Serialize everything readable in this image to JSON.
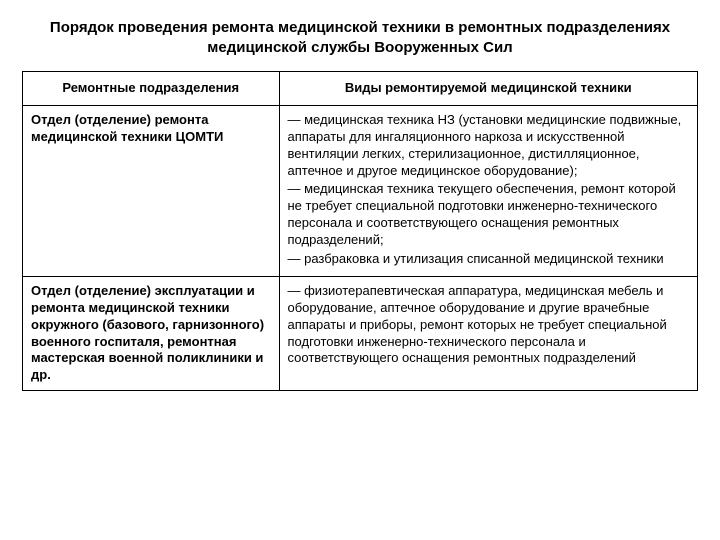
{
  "title": "Порядок проведения ремонта медицинской техники в ремонтных подразделениях медицинской службы Вооруженных Сил",
  "table": {
    "headers": {
      "col1": "Ремонтные подразделения",
      "col2": "Виды ремонтируемой медицинской техники"
    },
    "rows": [
      {
        "unit": "Отдел (отделение) ремонта медицинской техники ЦОМТИ",
        "p1": "— медицинская техника НЗ (установки медицинские подвижные, аппараты для ингаляционного наркоза и искусственной вентиляции легких, стерилизационное, дистилляционное, аптечное и другое медицинское оборудование);",
        "p2": "— медицинская техника текущего обеспечения, ремонт которой не требует специальной подготовки инженерно-технического персонала и соответствующего оснащения ремонтных подразделений;",
        "p3": "— разбраковка и утилизация списанной медицинской техники"
      },
      {
        "unit": "Отдел (отделение) эксплуатации и ремонта медицинской техники окружного (базового, гарнизонного) военного госпиталя, ремонтная мастерская военной поликлиники и др.",
        "p1": "— физиотерапевтическая аппаратура, медицинская мебель и оборудование, аптечное оборудование и другие врачебные аппараты и приборы, ремонт которых не требует специальной подготовки инженерно-технического персонала и соответствующего оснащения ремонтных подразделений"
      }
    ]
  }
}
